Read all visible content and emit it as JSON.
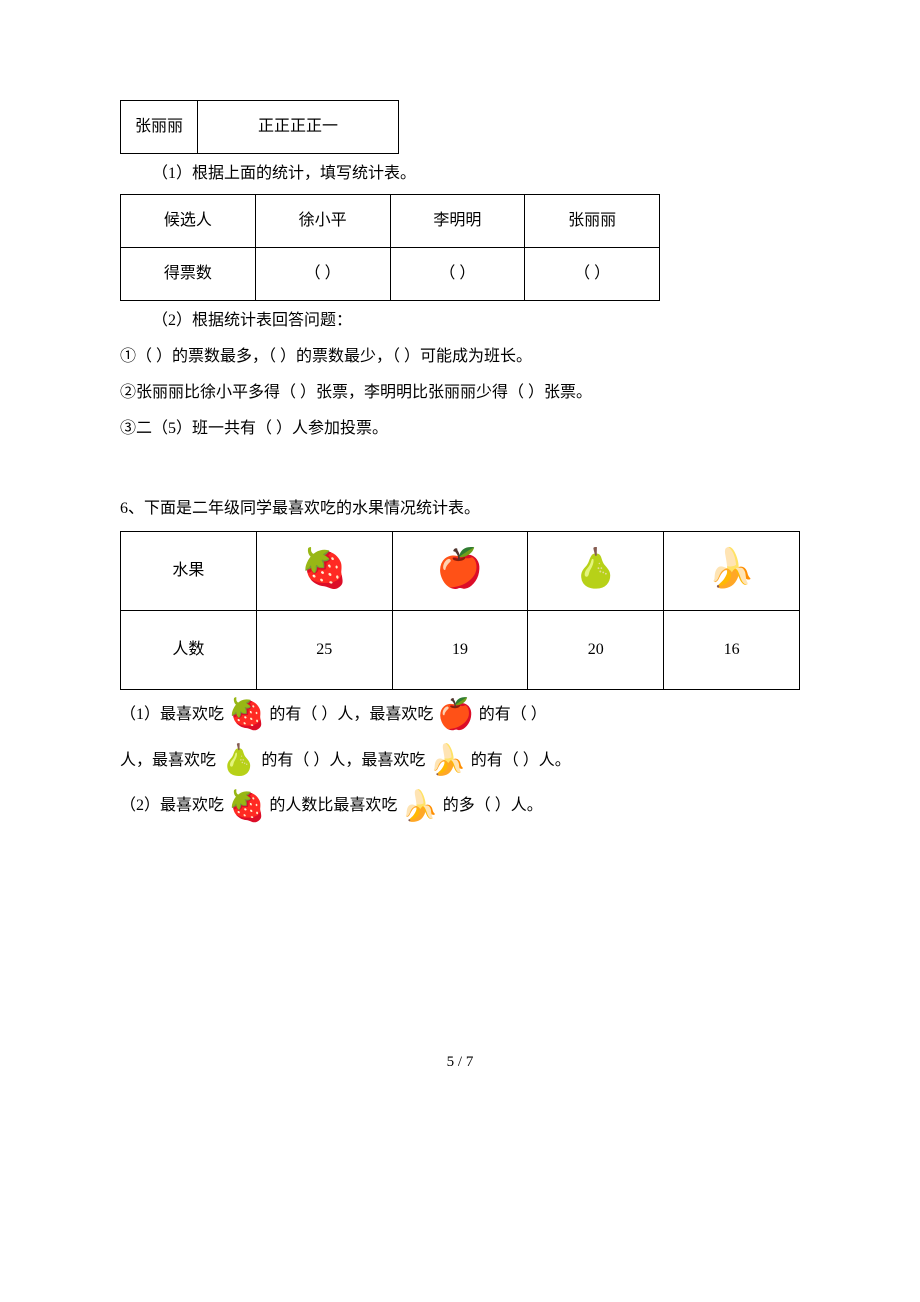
{
  "tallyTable": {
    "name": "张丽丽",
    "tally": "正正正正一"
  },
  "q5": {
    "part1Label": "（1）根据上面的统计，填写统计表。",
    "statsTable": {
      "headers": [
        "候选人",
        "徐小平",
        "李明明",
        "张丽丽"
      ],
      "row": [
        "得票数",
        "（        ）",
        "（        ）",
        "（        ）"
      ]
    },
    "part2Label": "（2）根据统计表回答问题：",
    "line1": "①（        ）的票数最多，（        ）的票数最少，（        ）可能成为班长。",
    "line2": "②张丽丽比徐小平多得（        ）张票，李明明比张丽丽少得（        ）张票。",
    "line3": "③二（5）班一共有（        ）人参加投票。"
  },
  "q6": {
    "title": "6、下面是二年级同学最喜欢吃的水果情况统计表。",
    "fruitTable": {
      "rowHeaders": [
        "水果",
        "人数"
      ],
      "fruits": [
        "🍓",
        "🍎",
        "🍐",
        "🍌"
      ],
      "counts": [
        "25",
        "19",
        "20",
        "16"
      ]
    },
    "q1_parts": {
      "p1a": "（1）最喜欢吃 ",
      "p1b": " 的有（        ）人，最喜欢吃 ",
      "p1c": " 的有（        ）",
      "p2a": "人，最喜欢吃 ",
      "p2b": " 的有（        ）人，最喜欢吃 ",
      "p2c": " 的有（        ）人。"
    },
    "q2_parts": {
      "a": "（2）最喜欢吃 ",
      "b": " 的人数比最喜欢吃 ",
      "c": " 的多（        ）人。"
    }
  },
  "footer": "5 / 7"
}
